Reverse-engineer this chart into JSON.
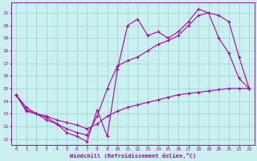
{
  "xlabel": "Windchill (Refroidissement éolien,°C)",
  "background_color": "#caf0f0",
  "grid_color": "#a0d8d8",
  "line_color": "#aa00aa",
  "xlim": [
    -0.5,
    23.5
  ],
  "ylim": [
    10.5,
    21.8
  ],
  "yticks": [
    11,
    12,
    13,
    14,
    15,
    16,
    17,
    18,
    19,
    20,
    21
  ],
  "xticks": [
    0,
    1,
    2,
    3,
    4,
    5,
    6,
    7,
    8,
    9,
    10,
    11,
    12,
    13,
    14,
    15,
    16,
    17,
    18,
    19,
    20,
    21,
    22,
    23
  ],
  "series": [
    {
      "x": [
        0,
        1,
        2,
        3,
        4,
        5,
        6,
        7,
        8,
        9,
        10,
        11,
        12,
        13,
        14,
        15,
        16,
        17,
        18,
        19,
        20,
        21,
        22,
        23
      ],
      "y": [
        14.5,
        13.5,
        13.0,
        12.7,
        12.2,
        11.5,
        11.2,
        10.8,
        13.3,
        11.2,
        16.5,
        20.0,
        20.5,
        19.2,
        19.5,
        19.0,
        19.5,
        20.3,
        21.3,
        21.0,
        19.0,
        17.8,
        15.8,
        15.0
      ]
    },
    {
      "x": [
        0,
        1,
        2,
        3,
        4,
        5,
        6,
        7,
        8,
        9,
        10,
        11,
        12,
        13,
        14,
        15,
        16,
        17,
        18,
        19,
        20,
        21,
        22,
        23
      ],
      "y": [
        14.5,
        13.2,
        13.0,
        12.5,
        12.2,
        11.8,
        11.5,
        11.3,
        12.8,
        15.0,
        16.8,
        17.2,
        17.5,
        18.0,
        18.5,
        18.8,
        19.2,
        20.0,
        20.8,
        21.0,
        20.8,
        20.3,
        17.5,
        15.0
      ]
    },
    {
      "x": [
        0,
        1,
        2,
        3,
        4,
        5,
        6,
        7,
        8,
        9,
        10,
        11,
        12,
        13,
        14,
        15,
        16,
        17,
        18,
        19,
        20,
        21,
        22,
        23
      ],
      "y": [
        14.5,
        13.3,
        13.0,
        12.8,
        12.5,
        12.3,
        12.1,
        11.8,
        12.2,
        12.8,
        13.2,
        13.5,
        13.7,
        13.9,
        14.1,
        14.3,
        14.5,
        14.6,
        14.7,
        14.8,
        14.9,
        15.0,
        15.0,
        15.0
      ]
    }
  ]
}
